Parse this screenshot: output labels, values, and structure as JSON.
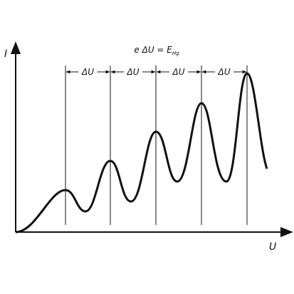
{
  "labels": {
    "y_axis": "I",
    "x_axis": "U",
    "equation": {
      "text": "e ΔU = E",
      "subscript": "Hg"
    },
    "intervals": [
      "ΔU",
      "ΔU",
      "ΔU",
      "ΔU"
    ]
  }
}
